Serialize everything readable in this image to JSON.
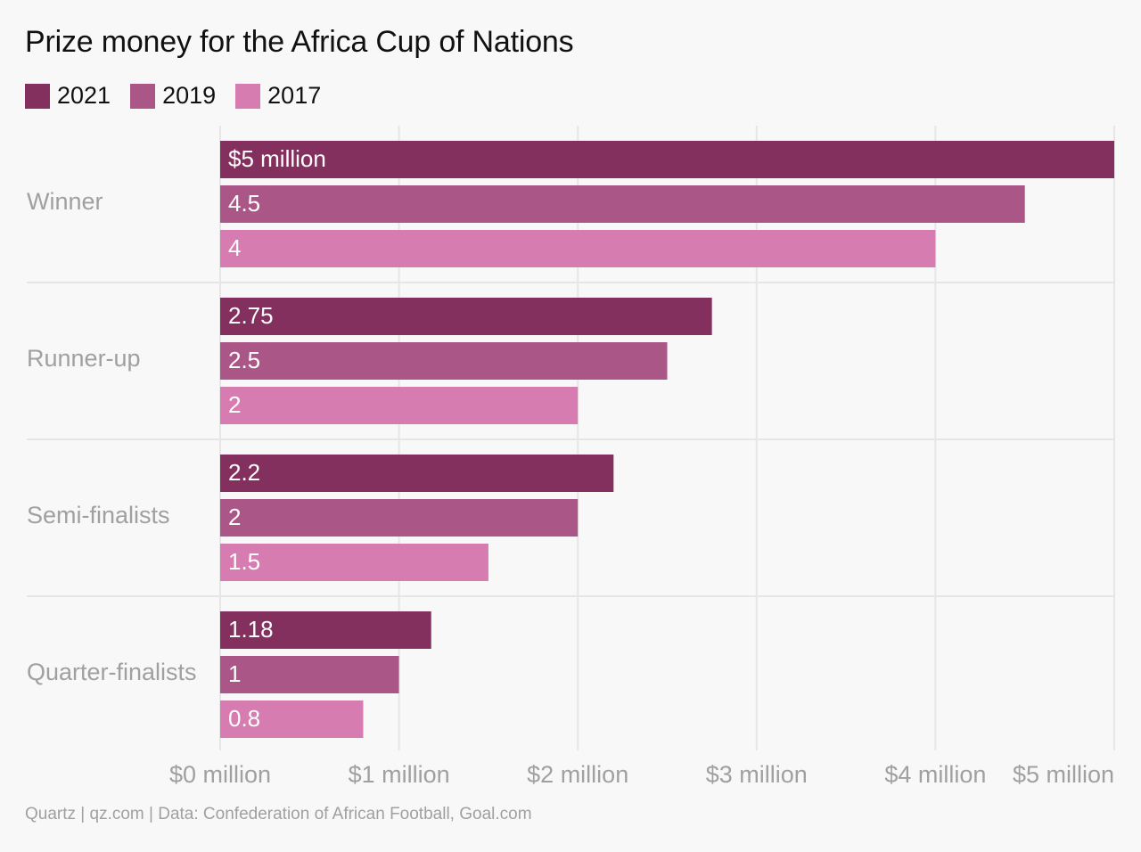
{
  "chart_data": {
    "type": "bar",
    "orientation": "horizontal",
    "title": "Prize money for the Africa Cup of Nations",
    "categories": [
      "Winner",
      "Runner-up",
      "Semi-finalists",
      "Quarter-finalists"
    ],
    "series": [
      {
        "name": "2021",
        "color": "#83305e",
        "values": [
          5,
          2.75,
          2.2,
          1.18
        ],
        "labels": [
          "$5 million",
          "2.75",
          "2.2",
          "1.18"
        ]
      },
      {
        "name": "2019",
        "color": "#aa5686",
        "values": [
          4.5,
          2.5,
          2,
          1
        ],
        "labels": [
          "4.5",
          "2.5",
          "2",
          "1"
        ]
      },
      {
        "name": "2017",
        "color": "#d77cb0",
        "values": [
          4,
          2,
          1.5,
          0.8
        ],
        "labels": [
          "4",
          "2",
          "1.5",
          "0.8"
        ]
      }
    ],
    "xlim": [
      0,
      5
    ],
    "xticks": [
      0,
      1,
      2,
      3,
      4,
      5
    ],
    "xtick_labels": [
      "$0 million",
      "$1 million",
      "$2 million",
      "$3 million",
      "$4 million",
      "$5 million"
    ],
    "grid": true,
    "legend_position": "top-left"
  },
  "footer": {
    "source": "Quartz | qz.com | Data: Confederation of African Football, Goal.com"
  },
  "colors": {
    "background": "#f8f8f8",
    "gridline": "#e6e6e6",
    "category_label": "#a0a0a0",
    "bar_label": "#ffffff"
  }
}
